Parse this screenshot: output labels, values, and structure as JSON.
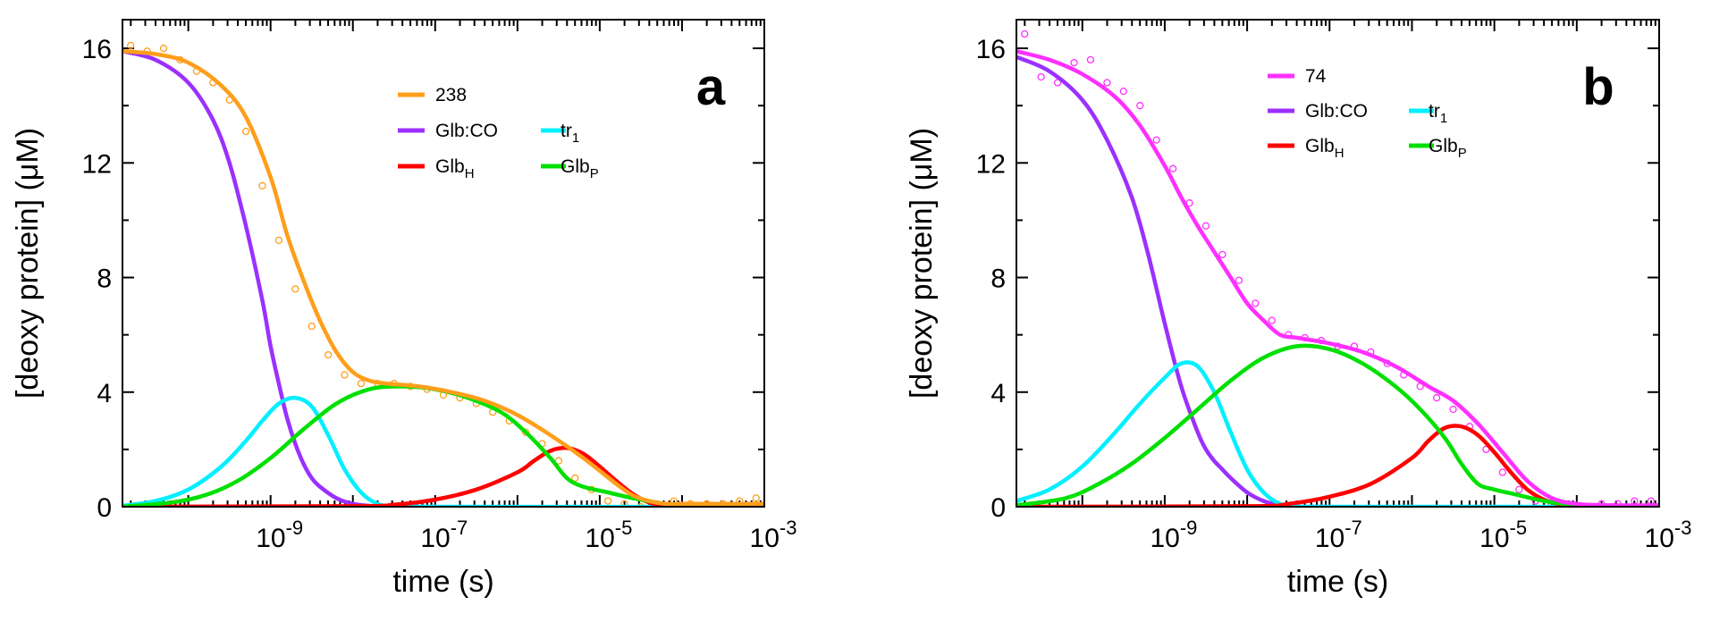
{
  "chart_data": [
    {
      "type": "line",
      "panel_label": "a",
      "xlabel": "time (s)",
      "ylabel": "[deoxy protein] (μM)",
      "xscale": "log",
      "xlim_log10": [
        -10.8,
        -3
      ],
      "ylim": [
        0,
        17
      ],
      "x_ticks": [
        {
          "log10": -9,
          "base": "10",
          "exp": "-9"
        },
        {
          "log10": -7,
          "base": "10",
          "exp": "-7"
        },
        {
          "log10": -5,
          "base": "10",
          "exp": "-5"
        },
        {
          "log10": -3,
          "base": "10",
          "exp": "-3"
        }
      ],
      "y_ticks": [
        0,
        4,
        8,
        12,
        16
      ],
      "legend": [
        {
          "text": "238",
          "sub": "",
          "color": "#ff9e1b"
        },
        {
          "text": "Glb:CO",
          "sub": "",
          "color": "#9b30ff"
        },
        {
          "text": "tr",
          "sub": "1",
          "color": "#00f0ff"
        },
        {
          "text": "Glb",
          "sub": "H",
          "color": "#ff0000"
        },
        {
          "text": "Glb",
          "sub": "P",
          "color": "#00e000"
        }
      ],
      "data_points": {
        "name": "238 data",
        "color": "#ff9e1b",
        "x_log10": [
          -10.7,
          -10.5,
          -10.3,
          -10.1,
          -9.9,
          -9.7,
          -9.5,
          -9.3,
          -9.1,
          -8.9,
          -8.7,
          -8.5,
          -8.3,
          -8.1,
          -7.9,
          -7.7,
          -7.5,
          -7.3,
          -7.1,
          -6.9,
          -6.7,
          -6.5,
          -6.3,
          -6.1,
          -5.9,
          -5.7,
          -5.5,
          -5.3,
          -5.1,
          -4.9,
          -4.7,
          -4.5,
          -4.3,
          -4.1,
          -3.9,
          -3.7,
          -3.5,
          -3.3,
          -3.1
        ],
        "y": [
          16.1,
          15.9,
          16.0,
          15.6,
          15.2,
          14.8,
          14.2,
          13.1,
          11.2,
          9.3,
          7.6,
          6.3,
          5.3,
          4.6,
          4.3,
          4.3,
          4.3,
          4.2,
          4.1,
          3.9,
          3.8,
          3.6,
          3.3,
          3.0,
          2.6,
          2.2,
          1.6,
          1.0,
          0.6,
          0.2,
          0.1,
          0.0,
          -0.3,
          0.2,
          0.1,
          0.1,
          0.1,
          0.2,
          0.3
        ]
      },
      "series": [
        {
          "name": "238",
          "color": "#ff9e1b",
          "x_log10": [
            -10.8,
            -10.4,
            -10.0,
            -9.6,
            -9.3,
            -9.0,
            -8.8,
            -8.6,
            -8.4,
            -8.2,
            -8.0,
            -7.8,
            -7.6,
            -7.2,
            -6.8,
            -6.4,
            -6.0,
            -5.6,
            -5.2,
            -4.8,
            -4.6,
            -4.4,
            -4.2,
            -4.0,
            -3.6,
            -3.0
          ],
          "y": [
            15.9,
            15.8,
            15.5,
            14.7,
            13.6,
            11.5,
            9.5,
            7.9,
            6.5,
            5.4,
            4.7,
            4.4,
            4.3,
            4.2,
            4.0,
            3.7,
            3.2,
            2.5,
            1.7,
            0.8,
            0.4,
            0.2,
            0.1,
            0.1,
            0.1,
            0.1
          ]
        },
        {
          "name": "Glb:CO",
          "color": "#9b30ff",
          "x_log10": [
            -10.8,
            -10.4,
            -10.0,
            -9.7,
            -9.5,
            -9.3,
            -9.1,
            -9.0,
            -8.9,
            -8.8,
            -8.7,
            -8.6,
            -8.5,
            -8.4,
            -8.2,
            -8.0,
            -7.8,
            -7.6,
            -7.0
          ],
          "y": [
            15.9,
            15.6,
            14.8,
            13.5,
            12.0,
            9.8,
            7.2,
            5.6,
            4.3,
            3.1,
            2.2,
            1.5,
            1.0,
            0.7,
            0.3,
            0.1,
            0.03,
            0.0,
            0.0
          ]
        },
        {
          "name": "tr1",
          "color": "#00f0ff",
          "x_log10": [
            -10.8,
            -10.4,
            -10.0,
            -9.6,
            -9.3,
            -9.1,
            -8.9,
            -8.7,
            -8.5,
            -8.3,
            -8.1,
            -7.9,
            -7.7,
            -7.5,
            -7.0,
            -3.0
          ],
          "y": [
            0.03,
            0.2,
            0.6,
            1.4,
            2.3,
            3.0,
            3.6,
            3.8,
            3.5,
            2.5,
            1.3,
            0.5,
            0.1,
            0.03,
            0.0,
            0.0
          ]
        },
        {
          "name": "GlbH",
          "color": "#ff0000",
          "x_log10": [
            -10.8,
            -8.0,
            -7.5,
            -7.0,
            -6.5,
            -6.0,
            -5.8,
            -5.6,
            -5.4,
            -5.2,
            -5.0,
            -4.8,
            -4.6,
            -4.4,
            -4.2,
            -4.0,
            -3.0
          ],
          "y": [
            0.0,
            0.02,
            0.07,
            0.25,
            0.6,
            1.2,
            1.6,
            1.95,
            2.05,
            1.85,
            1.4,
            0.9,
            0.45,
            0.15,
            0.05,
            0.0,
            0.0
          ]
        },
        {
          "name": "GlbP",
          "color": "#00e000",
          "x_log10": [
            -10.8,
            -10.2,
            -9.8,
            -9.4,
            -9.0,
            -8.6,
            -8.2,
            -7.8,
            -7.4,
            -7.0,
            -6.6,
            -6.2,
            -5.9,
            -5.6,
            -5.4,
            -5.2,
            -4.9,
            -4.6,
            -4.2,
            -3.8,
            -3.0
          ],
          "y": [
            0.0,
            0.15,
            0.4,
            0.9,
            1.7,
            2.7,
            3.6,
            4.1,
            4.2,
            4.1,
            3.8,
            3.3,
            2.6,
            1.7,
            1.0,
            0.7,
            0.5,
            0.3,
            0.1,
            0.0,
            0.0
          ]
        }
      ]
    },
    {
      "type": "line",
      "panel_label": "b",
      "xlabel": "time (s)",
      "ylabel": "[deoxy protein] (μM)",
      "xscale": "log",
      "xlim_log10": [
        -10.8,
        -3
      ],
      "ylim": [
        0,
        17
      ],
      "x_ticks": [
        {
          "log10": -9,
          "base": "10",
          "exp": "-9"
        },
        {
          "log10": -7,
          "base": "10",
          "exp": "-7"
        },
        {
          "log10": -5,
          "base": "10",
          "exp": "-5"
        },
        {
          "log10": -3,
          "base": "10",
          "exp": "-3"
        }
      ],
      "y_ticks": [
        0,
        4,
        8,
        12,
        16
      ],
      "legend": [
        {
          "text": "74",
          "sub": "",
          "color": "#ff2fff"
        },
        {
          "text": "Glb:CO",
          "sub": "",
          "color": "#9b30ff"
        },
        {
          "text": "tr",
          "sub": "1",
          "color": "#00f0ff"
        },
        {
          "text": "Glb",
          "sub": "H",
          "color": "#ff0000"
        },
        {
          "text": "Glb",
          "sub": "P",
          "color": "#00e000"
        }
      ],
      "data_points": {
        "name": "74 data",
        "color": "#ff2fff",
        "x_log10": [
          -10.7,
          -10.5,
          -10.3,
          -10.1,
          -9.9,
          -9.7,
          -9.5,
          -9.3,
          -9.1,
          -8.9,
          -8.7,
          -8.5,
          -8.3,
          -8.1,
          -7.9,
          -7.7,
          -7.5,
          -7.3,
          -7.1,
          -6.9,
          -6.7,
          -6.5,
          -6.3,
          -6.1,
          -5.9,
          -5.7,
          -5.5,
          -5.3,
          -5.1,
          -4.9,
          -4.7,
          -4.5,
          -4.3,
          -4.1,
          -3.9,
          -3.7,
          -3.5,
          -3.3,
          -3.1
        ],
        "y": [
          16.5,
          15.0,
          14.8,
          15.5,
          15.6,
          14.8,
          14.5,
          14.0,
          12.8,
          11.8,
          10.6,
          9.8,
          8.8,
          7.9,
          7.1,
          6.5,
          6.0,
          5.9,
          5.8,
          5.6,
          5.6,
          5.4,
          5.0,
          4.6,
          4.2,
          3.8,
          3.4,
          2.8,
          2.0,
          1.2,
          0.6,
          0.2,
          0.1,
          -0.1,
          -0.1,
          0.1,
          0.1,
          0.2,
          0.2
        ]
      },
      "series": [
        {
          "name": "74",
          "color": "#ff2fff",
          "x_log10": [
            -10.8,
            -10.4,
            -10.0,
            -9.6,
            -9.3,
            -9.0,
            -8.8,
            -8.6,
            -8.4,
            -8.2,
            -8.0,
            -7.8,
            -7.6,
            -7.4,
            -7.0,
            -6.6,
            -6.2,
            -5.8,
            -5.5,
            -5.2,
            -4.9,
            -4.6,
            -4.3,
            -4.0,
            -3.6,
            -3.0
          ],
          "y": [
            15.9,
            15.6,
            15.1,
            14.3,
            13.3,
            11.9,
            10.8,
            9.8,
            8.9,
            8.0,
            7.1,
            6.5,
            6.0,
            5.9,
            5.7,
            5.4,
            4.9,
            4.2,
            3.7,
            2.9,
            1.9,
            0.9,
            0.3,
            0.1,
            0.05,
            0.05
          ]
        },
        {
          "name": "Glb:CO",
          "color": "#9b30ff",
          "x_log10": [
            -10.8,
            -10.4,
            -10.0,
            -9.7,
            -9.4,
            -9.2,
            -9.0,
            -8.8,
            -8.6,
            -8.5,
            -8.4,
            -8.3,
            -8.2,
            -8.0,
            -7.8,
            -7.6,
            -7.4,
            -7.0
          ],
          "y": [
            15.7,
            15.2,
            14.2,
            12.8,
            10.8,
            8.8,
            6.4,
            4.2,
            2.6,
            2.0,
            1.6,
            1.3,
            1.0,
            0.5,
            0.2,
            0.05,
            0.0,
            0.0
          ]
        },
        {
          "name": "tr1",
          "color": "#00f0ff",
          "x_log10": [
            -10.8,
            -10.4,
            -10.0,
            -9.6,
            -9.3,
            -9.0,
            -8.8,
            -8.6,
            -8.4,
            -8.2,
            -8.0,
            -7.8,
            -7.6,
            -7.4,
            -7.0,
            -3.0
          ],
          "y": [
            0.2,
            0.6,
            1.4,
            2.6,
            3.6,
            4.5,
            5.0,
            4.9,
            4.0,
            2.6,
            1.3,
            0.5,
            0.1,
            0.02,
            0.0,
            0.0
          ]
        },
        {
          "name": "GlbH",
          "color": "#ff0000",
          "x_log10": [
            -10.8,
            -8.0,
            -7.5,
            -7.0,
            -6.5,
            -6.0,
            -5.8,
            -5.6,
            -5.4,
            -5.2,
            -5.0,
            -4.8,
            -4.6,
            -4.4,
            -4.2,
            -4.0,
            -3.0
          ],
          "y": [
            0.0,
            0.02,
            0.1,
            0.35,
            0.8,
            1.7,
            2.3,
            2.75,
            2.8,
            2.5,
            1.9,
            1.2,
            0.6,
            0.25,
            0.08,
            0.0,
            0.0
          ]
        },
        {
          "name": "GlbP",
          "color": "#00e000",
          "x_log10": [
            -10.8,
            -10.2,
            -9.8,
            -9.4,
            -9.0,
            -8.6,
            -8.2,
            -7.8,
            -7.4,
            -7.0,
            -6.6,
            -6.2,
            -5.9,
            -5.6,
            -5.4,
            -5.2,
            -5.0,
            -4.7,
            -4.4,
            -4.0,
            -3.6,
            -3.0
          ],
          "y": [
            0.05,
            0.3,
            0.8,
            1.5,
            2.4,
            3.4,
            4.4,
            5.2,
            5.6,
            5.5,
            5.0,
            4.2,
            3.4,
            2.4,
            1.5,
            0.8,
            0.6,
            0.4,
            0.2,
            0.05,
            0.0,
            0.0
          ]
        }
      ]
    }
  ]
}
